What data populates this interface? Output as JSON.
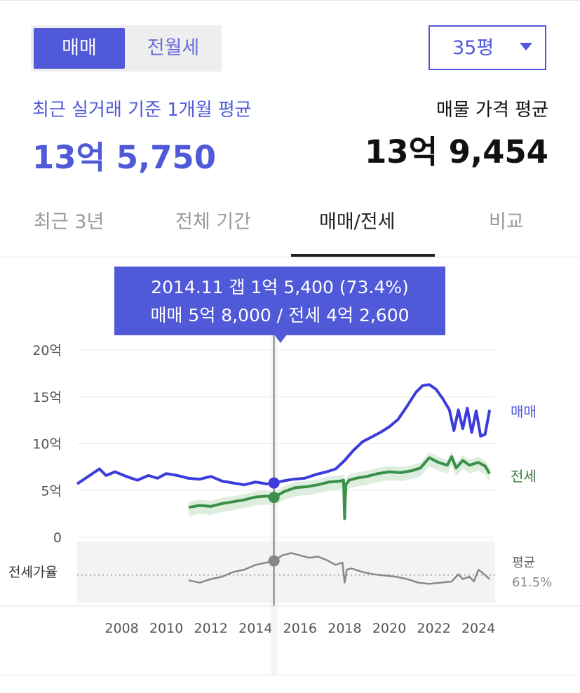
{
  "toggle": {
    "sale_label": "매매",
    "rent_label": "전월세"
  },
  "area_select": {
    "value": "35평"
  },
  "summary": {
    "recent_label": "최근 실거래 기준 1개월 평균",
    "recent_price": "13억 5,750",
    "listing_label": "매물 가격 평균",
    "listing_price": "13억 9,454"
  },
  "tabs": [
    {
      "label": "최근 3년"
    },
    {
      "label": "전체 기간"
    },
    {
      "label": "매매/전세"
    },
    {
      "label": "비교"
    }
  ],
  "tooltip": {
    "line1": "2014.11  갭 1억 5,400 (73.4%)",
    "line2": "매매 5억 8,000 / 전세 4억 2,600"
  },
  "colors": {
    "accent": "#5059d8",
    "sale": "#3c3cdc",
    "jeonse": "#3a9048",
    "ratio": "#888888"
  },
  "chart_data": {
    "type": "line",
    "ylim": [
      0,
      20
    ],
    "yticks": [
      "20억",
      "15억",
      "10억",
      "5억",
      "0"
    ],
    "xticks": [
      "2008",
      "2010",
      "2012",
      "2014",
      "2016",
      "2018",
      "2020",
      "2022",
      "2024"
    ],
    "xlim": [
      2006.0,
      2024.75
    ],
    "highlight": {
      "x": 2014.83,
      "sale": 5.8,
      "jeonse": 4.26
    },
    "series": [
      {
        "name": "매매",
        "x": [
          2006.0,
          2006.5,
          2007.0,
          2007.3,
          2007.7,
          2008.2,
          2008.7,
          2009.2,
          2009.6,
          2010.0,
          2010.5,
          2011.0,
          2011.5,
          2012.0,
          2012.5,
          2013.0,
          2013.5,
          2014.0,
          2014.5,
          2014.83,
          2015.2,
          2015.7,
          2016.2,
          2016.7,
          2017.2,
          2017.6,
          2018.0,
          2018.4,
          2018.8,
          2019.2,
          2019.6,
          2020.0,
          2020.4,
          2020.8,
          2021.2,
          2021.5,
          2021.8,
          2022.1,
          2022.4,
          2022.7,
          2022.9,
          2023.1,
          2023.3,
          2023.5,
          2023.7,
          2023.9,
          2024.1,
          2024.3,
          2024.5
        ],
        "values": [
          5.7,
          6.5,
          7.3,
          6.6,
          7.0,
          6.5,
          6.1,
          6.6,
          6.3,
          6.8,
          6.6,
          6.3,
          6.2,
          6.5,
          6.0,
          5.8,
          5.6,
          5.9,
          5.7,
          5.8,
          6.0,
          6.2,
          6.3,
          6.7,
          7.0,
          7.3,
          8.2,
          9.3,
          10.2,
          10.7,
          11.2,
          11.8,
          12.6,
          14.0,
          15.5,
          16.2,
          16.3,
          15.8,
          14.8,
          13.6,
          11.4,
          13.6,
          11.6,
          13.8,
          11.2,
          13.5,
          10.8,
          11.0,
          13.6
        ]
      },
      {
        "name": "전세",
        "x": [
          2011.0,
          2011.5,
          2012.0,
          2012.5,
          2013.0,
          2013.5,
          2014.0,
          2014.5,
          2014.83,
          2015.3,
          2015.8,
          2016.3,
          2016.8,
          2017.3,
          2017.8,
          2017.95,
          2018.0,
          2018.05,
          2018.2,
          2018.5,
          2019.0,
          2019.5,
          2020.0,
          2020.5,
          2021.0,
          2021.4,
          2021.8,
          2022.2,
          2022.6,
          2022.8,
          2023.0,
          2023.3,
          2023.6,
          2024.0,
          2024.3,
          2024.5
        ],
        "values": [
          3.2,
          3.4,
          3.3,
          3.6,
          3.8,
          4.0,
          4.3,
          4.4,
          4.26,
          4.9,
          5.3,
          5.4,
          5.6,
          5.9,
          6.0,
          6.1,
          2.0,
          5.6,
          6.1,
          6.3,
          6.5,
          6.8,
          7.0,
          6.9,
          7.1,
          7.4,
          8.5,
          8.0,
          7.7,
          8.6,
          7.4,
          8.2,
          7.7,
          8.0,
          7.6,
          6.8
        ]
      }
    ],
    "ratio": {
      "label": "전세가율",
      "avg_label": "평균",
      "avg_value": "61.5%",
      "avg": 61.5,
      "x": [
        2011.0,
        2011.5,
        2012.0,
        2012.5,
        2013.0,
        2013.5,
        2014.0,
        2014.5,
        2014.83,
        2015.2,
        2015.6,
        2016.0,
        2016.4,
        2016.8,
        2017.2,
        2017.6,
        2017.9,
        2018.0,
        2018.1,
        2018.3,
        2018.8,
        2019.3,
        2019.8,
        2020.3,
        2020.8,
        2021.3,
        2021.8,
        2022.3,
        2022.8,
        2023.1,
        2023.3,
        2023.6,
        2023.8,
        2024.0,
        2024.2,
        2024.5
      ],
      "values": [
        57,
        55,
        58,
        60,
        64,
        66,
        70,
        72,
        73.4,
        78,
        80,
        78,
        76,
        77,
        74,
        70,
        72,
        55,
        66,
        67,
        64,
        62,
        61,
        60,
        58,
        55,
        54,
        55,
        56,
        62,
        58,
        60,
        56,
        66,
        63,
        58
      ]
    }
  }
}
